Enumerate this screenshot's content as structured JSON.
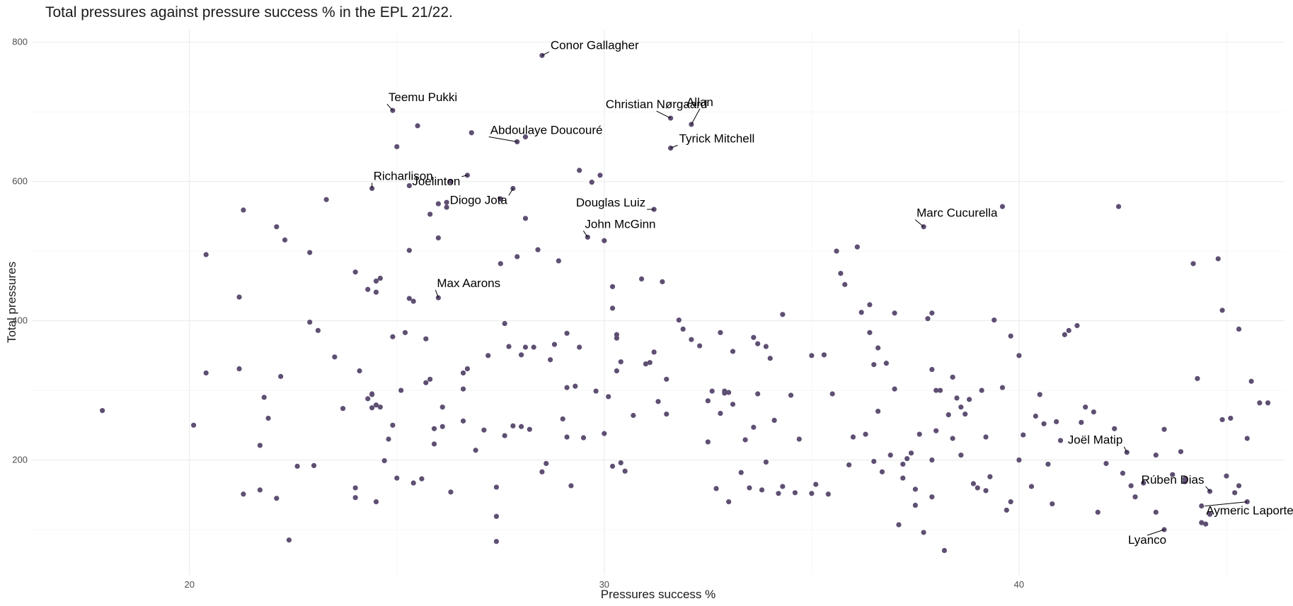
{
  "chart_data": {
    "type": "scatter",
    "title": "Total pressures against pressure success % in the EPL 21/22.",
    "xlabel": "Pressures success %",
    "ylabel": "Total pressures",
    "xlim": [
      16.2,
      46.4
    ],
    "ylim": [
      35,
      818
    ],
    "x_ticks": [
      20,
      30,
      40
    ],
    "y_ticks": [
      200,
      400,
      600,
      800
    ],
    "grid": true,
    "point_color": "#5e4f73",
    "points": [
      [
        17.9,
        271
      ],
      [
        20.1,
        250
      ],
      [
        20.4,
        495
      ],
      [
        20.4,
        325
      ],
      [
        21.2,
        434
      ],
      [
        21.2,
        331
      ],
      [
        21.3,
        559
      ],
      [
        21.3,
        151
      ],
      [
        21.7,
        157
      ],
      [
        21.7,
        221
      ],
      [
        21.8,
        290
      ],
      [
        21.9,
        260
      ],
      [
        22.1,
        535
      ],
      [
        22.1,
        145
      ],
      [
        22.2,
        320
      ],
      [
        22.3,
        516
      ],
      [
        22.4,
        85
      ],
      [
        22.6,
        191
      ],
      [
        22.9,
        498
      ],
      [
        22.9,
        398
      ],
      [
        23.0,
        192
      ],
      [
        23.1,
        386
      ],
      [
        23.3,
        574
      ],
      [
        23.5,
        348
      ],
      [
        23.7,
        274
      ],
      [
        24.0,
        470
      ],
      [
        24.0,
        160
      ],
      [
        24.0,
        146
      ],
      [
        24.1,
        328
      ],
      [
        24.3,
        445
      ],
      [
        24.3,
        288
      ],
      [
        24.4,
        295
      ],
      [
        24.4,
        275
      ],
      [
        24.4,
        294
      ],
      [
        24.5,
        457
      ],
      [
        24.5,
        441
      ],
      [
        24.5,
        140
      ],
      [
        24.5,
        279
      ],
      [
        24.6,
        461
      ],
      [
        24.6,
        276
      ],
      [
        24.7,
        199
      ],
      [
        24.8,
        230
      ],
      [
        24.9,
        250
      ],
      [
        24.9,
        377
      ],
      [
        25.0,
        650
      ],
      [
        25.0,
        174
      ],
      [
        25.1,
        300
      ],
      [
        25.2,
        383
      ],
      [
        25.3,
        594
      ],
      [
        25.3,
        501
      ],
      [
        25.3,
        432
      ],
      [
        25.4,
        167
      ],
      [
        25.4,
        428
      ],
      [
        25.5,
        680
      ],
      [
        25.6,
        173
      ],
      [
        25.7,
        374
      ],
      [
        25.7,
        311
      ],
      [
        25.8,
        316
      ],
      [
        25.8,
        553
      ],
      [
        25.9,
        245
      ],
      [
        25.9,
        223
      ],
      [
        26.0,
        519
      ],
      [
        26.0,
        568
      ],
      [
        26.1,
        276
      ],
      [
        26.1,
        248
      ],
      [
        26.2,
        570
      ],
      [
        26.2,
        563
      ],
      [
        26.3,
        154
      ],
      [
        26.3,
        600
      ],
      [
        26.6,
        256
      ],
      [
        26.6,
        302
      ],
      [
        26.6,
        325
      ],
      [
        26.7,
        331
      ],
      [
        26.8,
        670
      ],
      [
        26.9,
        214
      ],
      [
        27.1,
        243
      ],
      [
        27.2,
        350
      ],
      [
        27.4,
        83
      ],
      [
        27.4,
        119
      ],
      [
        27.4,
        161
      ],
      [
        27.5,
        482
      ],
      [
        27.5,
        575
      ],
      [
        27.6,
        235
      ],
      [
        27.6,
        396
      ],
      [
        27.7,
        363
      ],
      [
        27.8,
        249
      ],
      [
        27.9,
        492
      ],
      [
        28.0,
        248
      ],
      [
        28.0,
        351
      ],
      [
        28.1,
        664
      ],
      [
        28.1,
        547
      ],
      [
        28.1,
        362
      ],
      [
        28.2,
        244
      ],
      [
        28.3,
        362
      ],
      [
        28.4,
        502
      ],
      [
        28.5,
        183
      ],
      [
        28.6,
        195
      ],
      [
        28.7,
        344
      ],
      [
        28.8,
        366
      ],
      [
        28.9,
        486
      ],
      [
        29.0,
        259
      ],
      [
        29.1,
        304
      ],
      [
        29.1,
        382
      ],
      [
        29.1,
        233
      ],
      [
        29.2,
        163
      ],
      [
        29.3,
        306
      ],
      [
        29.4,
        616
      ],
      [
        29.4,
        362
      ],
      [
        29.5,
        232
      ],
      [
        29.7,
        599
      ],
      [
        29.8,
        299
      ],
      [
        29.9,
        609
      ],
      [
        30.0,
        515
      ],
      [
        30.0,
        238
      ],
      [
        30.1,
        291
      ],
      [
        30.2,
        449
      ],
      [
        30.2,
        418
      ],
      [
        30.2,
        191
      ],
      [
        30.3,
        328
      ],
      [
        30.3,
        375
      ],
      [
        30.3,
        380
      ],
      [
        30.4,
        196
      ],
      [
        30.4,
        341
      ],
      [
        30.5,
        184
      ],
      [
        30.7,
        264
      ],
      [
        30.9,
        460
      ],
      [
        31.0,
        338
      ],
      [
        31.1,
        340
      ],
      [
        31.2,
        355
      ],
      [
        31.3,
        284
      ],
      [
        31.4,
        456
      ],
      [
        31.5,
        266
      ],
      [
        31.5,
        316
      ],
      [
        31.8,
        401
      ],
      [
        31.9,
        388
      ],
      [
        32.1,
        373
      ],
      [
        32.3,
        364
      ],
      [
        32.5,
        285
      ],
      [
        32.5,
        226
      ],
      [
        32.6,
        299
      ],
      [
        32.7,
        159
      ],
      [
        32.8,
        383
      ],
      [
        32.8,
        267
      ],
      [
        32.9,
        299
      ],
      [
        32.9,
        296
      ],
      [
        33.0,
        297
      ],
      [
        33.0,
        140
      ],
      [
        33.1,
        356
      ],
      [
        33.1,
        280
      ],
      [
        33.3,
        182
      ],
      [
        33.4,
        229
      ],
      [
        33.5,
        160
      ],
      [
        33.6,
        247
      ],
      [
        33.6,
        376
      ],
      [
        33.7,
        295
      ],
      [
        33.7,
        367
      ],
      [
        33.8,
        157
      ],
      [
        33.9,
        363
      ],
      [
        33.9,
        197
      ],
      [
        34.0,
        346
      ],
      [
        34.1,
        257
      ],
      [
        34.2,
        152
      ],
      [
        34.3,
        409
      ],
      [
        34.3,
        162
      ],
      [
        34.5,
        293
      ],
      [
        34.6,
        153
      ],
      [
        34.7,
        230
      ],
      [
        35.0,
        350
      ],
      [
        35.0,
        152
      ],
      [
        35.1,
        165
      ],
      [
        35.3,
        351
      ],
      [
        35.4,
        151
      ],
      [
        35.5,
        295
      ],
      [
        35.6,
        500
      ],
      [
        35.7,
        468
      ],
      [
        35.8,
        452
      ],
      [
        35.9,
        193
      ],
      [
        36.0,
        233
      ],
      [
        36.1,
        506
      ],
      [
        36.2,
        412
      ],
      [
        36.3,
        237
      ],
      [
        36.4,
        423
      ],
      [
        36.4,
        383
      ],
      [
        36.5,
        337
      ],
      [
        36.5,
        198
      ],
      [
        36.6,
        270
      ],
      [
        36.6,
        361
      ],
      [
        36.7,
        183
      ],
      [
        36.8,
        339
      ],
      [
        36.9,
        207
      ],
      [
        37.0,
        302
      ],
      [
        37.0,
        411
      ],
      [
        37.1,
        107
      ],
      [
        37.2,
        194
      ],
      [
        37.2,
        174
      ],
      [
        37.3,
        202
      ],
      [
        37.4,
        210
      ],
      [
        37.5,
        158
      ],
      [
        37.5,
        135
      ],
      [
        37.6,
        237
      ],
      [
        37.7,
        96
      ],
      [
        37.8,
        403
      ],
      [
        37.9,
        411
      ],
      [
        37.9,
        330
      ],
      [
        37.9,
        200
      ],
      [
        37.9,
        147
      ],
      [
        38.0,
        300
      ],
      [
        38.0,
        242
      ],
      [
        38.1,
        300
      ],
      [
        38.2,
        70
      ],
      [
        38.3,
        265
      ],
      [
        38.4,
        231
      ],
      [
        38.4,
        319
      ],
      [
        38.5,
        289
      ],
      [
        38.6,
        276
      ],
      [
        38.6,
        207
      ],
      [
        38.7,
        266
      ],
      [
        38.8,
        287
      ],
      [
        38.9,
        166
      ],
      [
        39.0,
        160
      ],
      [
        39.1,
        300
      ],
      [
        39.2,
        233
      ],
      [
        39.2,
        156
      ],
      [
        39.3,
        176
      ],
      [
        39.4,
        401
      ],
      [
        39.6,
        564
      ],
      [
        39.6,
        304
      ],
      [
        39.7,
        128
      ],
      [
        39.8,
        378
      ],
      [
        39.8,
        140
      ],
      [
        40.0,
        350
      ],
      [
        40.0,
        200
      ],
      [
        40.1,
        236
      ],
      [
        40.3,
        162
      ],
      [
        40.4,
        263
      ],
      [
        40.5,
        294
      ],
      [
        40.6,
        252
      ],
      [
        40.7,
        194
      ],
      [
        40.8,
        137
      ],
      [
        40.9,
        255
      ],
      [
        41.0,
        228
      ],
      [
        41.1,
        380
      ],
      [
        41.2,
        386
      ],
      [
        41.4,
        393
      ],
      [
        41.5,
        254
      ],
      [
        41.6,
        276
      ],
      [
        41.8,
        269
      ],
      [
        41.9,
        125
      ],
      [
        42.1,
        195
      ],
      [
        42.3,
        245
      ],
      [
        42.4,
        564
      ],
      [
        42.5,
        181
      ],
      [
        42.7,
        163
      ],
      [
        42.8,
        147
      ],
      [
        43.0,
        167
      ],
      [
        43.3,
        125
      ],
      [
        43.3,
        207
      ],
      [
        43.5,
        244
      ],
      [
        43.7,
        179
      ],
      [
        43.9,
        212
      ],
      [
        44.0,
        169
      ],
      [
        44.0,
        173
      ],
      [
        44.2,
        482
      ],
      [
        44.3,
        317
      ],
      [
        44.4,
        134
      ],
      [
        44.4,
        110
      ],
      [
        44.5,
        108
      ],
      [
        44.6,
        122
      ],
      [
        44.8,
        489
      ],
      [
        44.9,
        415
      ],
      [
        44.9,
        258
      ],
      [
        45.0,
        177
      ],
      [
        45.1,
        260
      ],
      [
        45.2,
        153
      ],
      [
        45.3,
        388
      ],
      [
        45.3,
        163
      ],
      [
        45.5,
        231
      ],
      [
        45.6,
        313
      ],
      [
        45.8,
        282
      ],
      [
        46.0,
        282
      ]
    ],
    "labeled_points": [
      {
        "name": "Conor Gallagher",
        "x": 28.5,
        "y": 781
      },
      {
        "name": "Teemu Pukki",
        "x": 24.9,
        "y": 702
      },
      {
        "name": "Christian Nørgaard",
        "x": 31.6,
        "y": 691
      },
      {
        "name": "Abdoulaye Doucouré",
        "x": 27.9,
        "y": 657
      },
      {
        "name": "Allan",
        "x": 32.1,
        "y": 682
      },
      {
        "name": "Tyrick Mitchell",
        "x": 31.6,
        "y": 648
      },
      {
        "name": "Richarlison",
        "x": 24.4,
        "y": 590
      },
      {
        "name": "Joelinton",
        "x": 26.7,
        "y": 609
      },
      {
        "name": "Diogo Jota",
        "x": 27.8,
        "y": 590
      },
      {
        "name": "Douglas Luiz",
        "x": 31.2,
        "y": 560
      },
      {
        "name": "John McGinn",
        "x": 29.6,
        "y": 520
      },
      {
        "name": "Marc Cucurella",
        "x": 37.7,
        "y": 535
      },
      {
        "name": "Max Aarons",
        "x": 26.0,
        "y": 433
      },
      {
        "name": "Joël Matip",
        "x": 42.6,
        "y": 211
      },
      {
        "name": "Rúben Dias",
        "x": 44.6,
        "y": 155
      },
      {
        "name": "Aymeric Laporte",
        "x": 45.5,
        "y": 140
      },
      {
        "name": "Lyanco",
        "x": 43.5,
        "y": 100
      }
    ]
  }
}
